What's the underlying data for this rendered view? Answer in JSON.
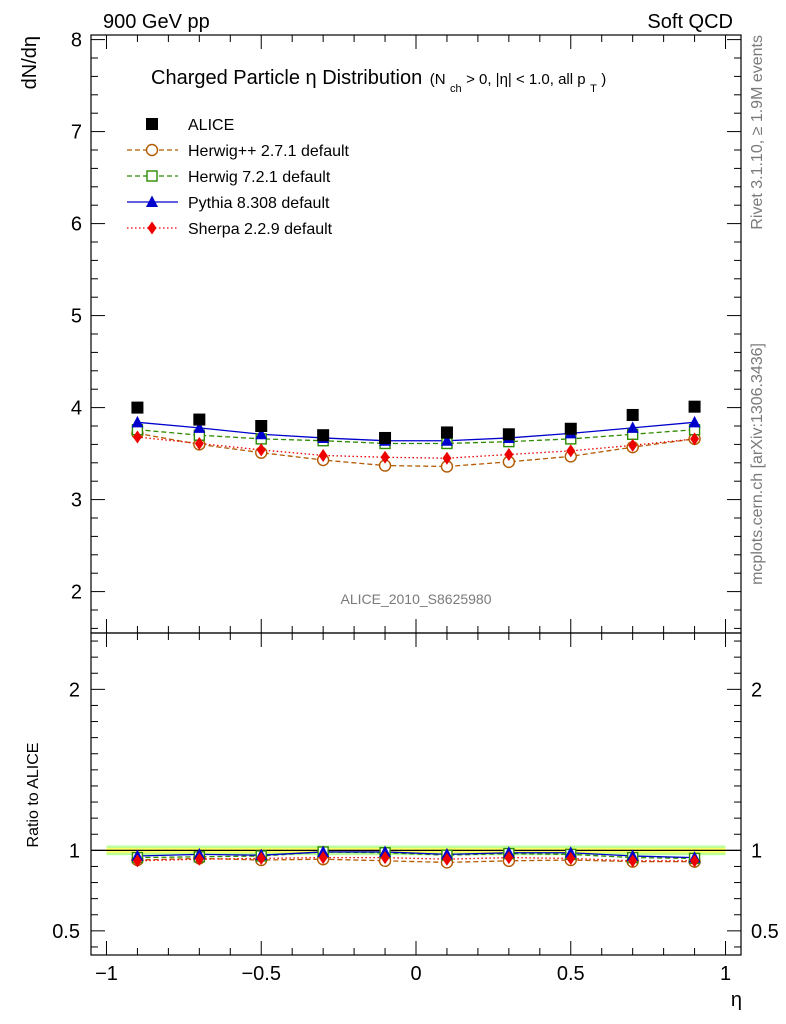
{
  "header": {
    "left": "900 GeV pp",
    "right": "Soft QCD"
  },
  "side_labels": {
    "top": "Rivet 3.1.10, ≥ 1.9M events",
    "bottom": "mcplots.cern.ch [arXiv:1306.3436]"
  },
  "chart_data": {
    "type": "scatter",
    "title_main": "Charged Particle η Distribution",
    "title_sub_prefix": "(N",
    "title_sub_subscript": "ch",
    "title_sub_middle": " > 0, |η| < 1.0, all p",
    "title_sub_subscript2": "T",
    "title_sub_suffix": ")",
    "ylabel": "dN/dη",
    "ratio_ylabel": "Ratio to ALICE",
    "xlabel": "η",
    "analysis_tag": "ALICE_2010_S8625980",
    "xlim": [
      -1.05,
      1.05
    ],
    "ylim": [
      1.55,
      8.05
    ],
    "ratio_ylim": [
      0.35,
      2.35
    ],
    "x_ticks": [
      -1,
      -0.5,
      0,
      0.5,
      1
    ],
    "x_tick_labels": [
      "−1",
      "−0.5",
      "0",
      "0.5",
      "1"
    ],
    "y_ticks": [
      2,
      3,
      4,
      5,
      6,
      7,
      8
    ],
    "y_tick_labels": [
      "2",
      "3",
      "4",
      "5",
      "6",
      "7",
      "8"
    ],
    "ratio_ticks": [
      0.5,
      1,
      2
    ],
    "ratio_tick_labels": [
      "0.5",
      "1",
      "2"
    ],
    "legend_position": "top-left",
    "x": [
      -0.9,
      -0.7,
      -0.5,
      -0.3,
      -0.1,
      0.1,
      0.3,
      0.5,
      0.7,
      0.9
    ],
    "series": [
      {
        "name": "ALICE",
        "style": "data",
        "color": "#000000",
        "values": [
          4.0,
          3.87,
          3.8,
          3.7,
          3.67,
          3.73,
          3.71,
          3.77,
          3.92,
          4.01
        ],
        "ratio": [
          1,
          1,
          1,
          1,
          1,
          1,
          1,
          1,
          1,
          1
        ]
      },
      {
        "name": "Herwig++ 2.7.1 default",
        "style": "circle-open",
        "dash": "5,3",
        "color": "#b35900",
        "values": [
          3.72,
          3.6,
          3.51,
          3.43,
          3.37,
          3.36,
          3.41,
          3.47,
          3.57,
          3.66
        ],
        "ratio": [
          0.94,
          0.95,
          0.94,
          0.945,
          0.935,
          0.925,
          0.935,
          0.94,
          0.93,
          0.93
        ]
      },
      {
        "name": "Herwig 7.2.1 default",
        "style": "square-open",
        "dash": "5,3",
        "color": "#2e8b00",
        "values": [
          3.76,
          3.7,
          3.66,
          3.64,
          3.61,
          3.61,
          3.63,
          3.66,
          3.71,
          3.76
        ],
        "ratio": [
          0.955,
          0.96,
          0.965,
          0.99,
          0.985,
          0.97,
          0.98,
          0.975,
          0.955,
          0.95
        ]
      },
      {
        "name": "Pythia 8.308 default",
        "style": "triangle",
        "dash": "",
        "color": "#0000cc",
        "values": [
          3.84,
          3.78,
          3.71,
          3.67,
          3.64,
          3.64,
          3.67,
          3.72,
          3.78,
          3.84
        ],
        "ratio": [
          0.965,
          0.975,
          0.97,
          0.99,
          0.99,
          0.975,
          0.985,
          0.985,
          0.965,
          0.955
        ]
      },
      {
        "name": "Sherpa 2.2.9 default",
        "style": "diamond",
        "dash": "1.5,2.5",
        "color": "#ee0000",
        "values": [
          3.68,
          3.61,
          3.54,
          3.48,
          3.46,
          3.45,
          3.49,
          3.53,
          3.59,
          3.66
        ],
        "ratio": [
          0.935,
          0.945,
          0.95,
          0.955,
          0.955,
          0.945,
          0.955,
          0.95,
          0.935,
          0.935
        ]
      }
    ],
    "ratio_band": {
      "inner": [
        0.985,
        1.015
      ],
      "outer": [
        0.97,
        1.03
      ],
      "inner_color": "#ffff66",
      "outer_color": "#bbff99"
    }
  }
}
